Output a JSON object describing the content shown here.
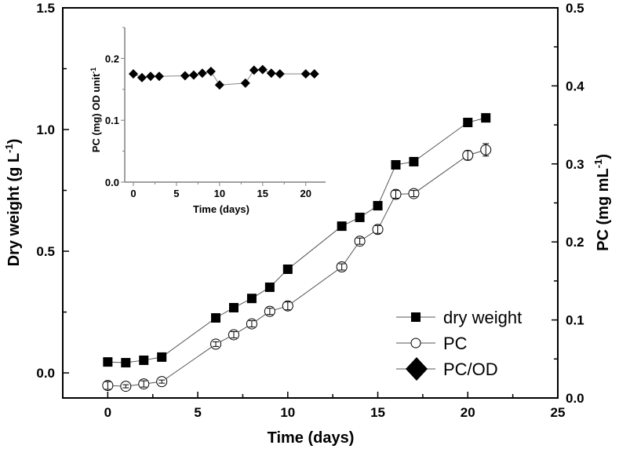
{
  "chart_data": [
    {
      "type": "line",
      "title": "",
      "xlabel": "Time (days)",
      "ylabel": "Dry weight (g L-1)",
      "ylabel_parts": {
        "main": "Dry weight (g L",
        "sup": "-1",
        "end": ")"
      },
      "y2label": "PC (mg mL-1)",
      "y2label_parts": {
        "main": "PC (mg mL",
        "sup": "-1",
        "end": ")"
      },
      "xlim": [
        -2.5,
        25
      ],
      "ylim": [
        -0.103,
        1.5
      ],
      "y2lim": [
        0,
        0.5
      ],
      "xticks": [
        "0",
        "5",
        "10",
        "15",
        "20",
        "25"
      ],
      "yticks": [
        "0.0",
        "0.5",
        "1.0",
        "1.5"
      ],
      "y2ticks": [
        "0.0",
        "0.1",
        "0.2",
        "0.3",
        "0.4",
        "0.5"
      ],
      "legend_position": "bottom-right",
      "series": [
        {
          "name": "dry weight",
          "axis": "left",
          "marker": "square",
          "x": [
            0,
            1,
            2,
            3,
            6,
            7,
            8,
            9,
            10,
            13,
            14,
            15,
            16,
            17,
            20,
            21
          ],
          "y": [
            0.045,
            0.042,
            0.052,
            0.065,
            0.226,
            0.268,
            0.306,
            0.352,
            0.426,
            0.603,
            0.639,
            0.687,
            0.855,
            0.868,
            1.029,
            1.048
          ]
        },
        {
          "name": "PC",
          "axis": "right",
          "marker": "open-circle",
          "x": [
            0,
            1,
            2,
            3,
            6,
            7,
            8,
            9,
            10,
            13,
            14,
            15,
            16,
            17,
            20,
            21
          ],
          "y": [
            0.016,
            0.015,
            0.018,
            0.021,
            0.069,
            0.081,
            0.095,
            0.111,
            0.118,
            0.168,
            0.201,
            0.216,
            0.261,
            0.262,
            0.311,
            0.318
          ],
          "err": [
            0.005,
            0.002,
            0.004,
            0.002,
            0.003,
            0.004,
            0.004,
            0.004,
            0.005,
            0.004,
            0.004,
            0.005,
            0.005,
            0.004,
            0.006,
            0.008
          ]
        },
        {
          "name": "PC/OD",
          "axis": "inset",
          "marker": "diamond"
        }
      ]
    },
    {
      "type": "line",
      "inset": true,
      "xlabel": "Time (days)",
      "ylabel": "PC (mg)  OD unit-1",
      "ylabel_parts": {
        "main": "PC (mg)  OD unit",
        "sup": "-1"
      },
      "xlim": [
        -1,
        22.3
      ],
      "ylim": [
        0,
        0.25
      ],
      "xticks": [
        "0",
        "5",
        "10",
        "15",
        "20"
      ],
      "yticks": [
        "0.0",
        "0.1",
        "0.2"
      ],
      "series": [
        {
          "name": "PC/OD",
          "marker": "diamond",
          "x": [
            0,
            1,
            2,
            3,
            6,
            7,
            8,
            9,
            10,
            13,
            14,
            15,
            16,
            17,
            20,
            21
          ],
          "y": [
            0.175,
            0.169,
            0.171,
            0.171,
            0.172,
            0.173,
            0.176,
            0.179,
            0.157,
            0.16,
            0.181,
            0.182,
            0.176,
            0.175,
            0.175,
            0.175
          ]
        }
      ]
    }
  ],
  "colors": {
    "axis": "#000000",
    "inset_axis": "#808080",
    "line": "#555555",
    "marker": "#000000"
  }
}
